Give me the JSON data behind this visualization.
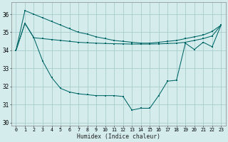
{
  "xlabel": "Humidex (Indice chaleur)",
  "background_color": "#d4ecec",
  "grid_color": "#a8cccc",
  "line_color": "#006666",
  "x": [
    0,
    1,
    2,
    3,
    4,
    5,
    6,
    7,
    8,
    9,
    10,
    11,
    12,
    13,
    14,
    15,
    16,
    17,
    18,
    19,
    20,
    21,
    22,
    23
  ],
  "line_top": [
    34.0,
    36.2,
    36.0,
    35.8,
    35.6,
    35.4,
    35.2,
    35.0,
    34.9,
    34.75,
    34.65,
    34.55,
    34.5,
    34.45,
    34.4,
    34.4,
    34.45,
    34.5,
    34.55,
    34.65,
    34.75,
    34.85,
    35.05,
    35.4
  ],
  "line_mid": [
    34.0,
    35.5,
    34.7,
    34.65,
    34.6,
    34.55,
    34.5,
    34.45,
    34.42,
    34.4,
    34.38,
    34.37,
    34.36,
    34.35,
    34.35,
    34.35,
    34.36,
    34.38,
    34.4,
    34.45,
    34.55,
    34.65,
    34.8,
    35.4
  ],
  "line_bot": [
    34.0,
    35.5,
    34.7,
    33.4,
    32.5,
    31.9,
    31.7,
    31.6,
    31.55,
    31.5,
    31.5,
    31.5,
    31.45,
    30.7,
    30.8,
    30.8,
    31.5,
    32.3,
    32.35,
    34.4,
    34.05,
    34.45,
    34.2,
    35.4
  ],
  "ylim": [
    29.85,
    36.65
  ],
  "yticks": [
    30,
    31,
    32,
    33,
    34,
    35,
    36
  ],
  "xlim": [
    -0.5,
    23.5
  ],
  "xticks": [
    0,
    1,
    2,
    3,
    4,
    5,
    6,
    7,
    8,
    9,
    10,
    11,
    12,
    13,
    14,
    15,
    16,
    17,
    18,
    19,
    20,
    21,
    22,
    23
  ],
  "xtick_labels": [
    "0",
    "1",
    "2",
    "3",
    "4",
    "5",
    "6",
    "7",
    "8",
    "9",
    "10",
    "11",
    "12",
    "13",
    "14",
    "15",
    "16",
    "17",
    "18",
    "19",
    "20",
    "21",
    "22",
    "23"
  ]
}
